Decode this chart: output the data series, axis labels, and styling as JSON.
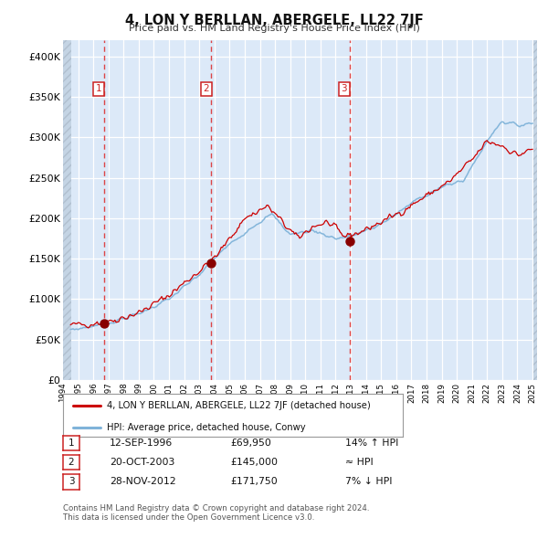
{
  "title": "4, LON Y BERLLAN, ABERGELE, LL22 7JF",
  "subtitle": "Price paid vs. HM Land Registry's House Price Index (HPI)",
  "xlim": [
    1994.0,
    2025.3
  ],
  "ylim": [
    0,
    420000
  ],
  "yticks": [
    0,
    50000,
    100000,
    150000,
    200000,
    250000,
    300000,
    350000,
    400000
  ],
  "ytick_labels": [
    "£0",
    "£50K",
    "£100K",
    "£150K",
    "£200K",
    "£250K",
    "£300K",
    "£350K",
    "£400K"
  ],
  "background_color": "#dce9f8",
  "grid_color": "#ffffff",
  "hpi_color": "#7fb3d9",
  "price_color": "#cc0000",
  "sale_marker_color": "#880000",
  "vline_color": "#dd3333",
  "hatch_color": "#c4d4e4",
  "sale_points": [
    {
      "date": 1996.71,
      "price": 69950,
      "label": "1"
    },
    {
      "date": 2003.8,
      "price": 145000,
      "label": "2"
    },
    {
      "date": 2012.91,
      "price": 171750,
      "label": "3"
    }
  ],
  "legend_label_price": "4, LON Y BERLLAN, ABERGELE, LL22 7JF (detached house)",
  "legend_label_hpi": "HPI: Average price, detached house, Conwy",
  "table_rows": [
    {
      "num": "1",
      "date": "12-SEP-1996",
      "price": "£69,950",
      "rel": "14% ↑ HPI"
    },
    {
      "num": "2",
      "date": "20-OCT-2003",
      "price": "£145,000",
      "rel": "≈ HPI"
    },
    {
      "num": "3",
      "date": "28-NOV-2012",
      "price": "£171,750",
      "rel": "7% ↓ HPI"
    }
  ],
  "footnote1": "Contains HM Land Registry data © Crown copyright and database right 2024.",
  "footnote2": "This data is licensed under the Open Government Licence v3.0."
}
